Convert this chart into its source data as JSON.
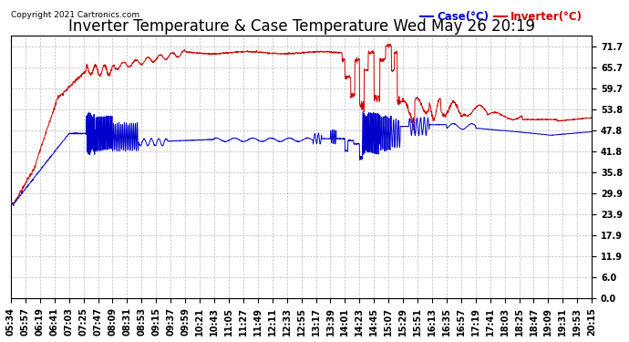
{
  "title": "Inverter Temperature & Case Temperature Wed May 26 20:19",
  "copyright": "Copyright 2021 Cartronics.com",
  "legend_case": "Case(°C)",
  "legend_inverter": "Inverter(°C)",
  "legend_case_color": "#0000cc",
  "legend_inverter_color": "#cc0000",
  "background_color": "#ffffff",
  "plot_bg_color": "#ffffff",
  "grid_color": "#bbbbbb",
  "yticks": [
    0.0,
    6.0,
    11.9,
    17.9,
    23.9,
    29.9,
    35.8,
    41.8,
    47.8,
    53.8,
    59.7,
    65.7,
    71.7
  ],
  "ylim": [
    0.0,
    75.0
  ],
  "title_fontsize": 12,
  "tick_fontsize": 7,
  "case_color": "#0000cc",
  "inverter_color": "#cc0000",
  "time_labels": [
    "05:34",
    "05:57",
    "06:19",
    "06:41",
    "07:03",
    "07:25",
    "07:47",
    "08:09",
    "08:31",
    "08:53",
    "09:15",
    "09:37",
    "09:59",
    "10:21",
    "10:43",
    "11:05",
    "11:27",
    "11:49",
    "12:11",
    "12:33",
    "12:55",
    "13:17",
    "13:39",
    "14:01",
    "14:23",
    "14:45",
    "15:07",
    "15:29",
    "15:51",
    "16:13",
    "16:35",
    "16:57",
    "17:19",
    "17:41",
    "18:03",
    "18:25",
    "18:47",
    "19:09",
    "19:31",
    "19:53",
    "20:15"
  ]
}
